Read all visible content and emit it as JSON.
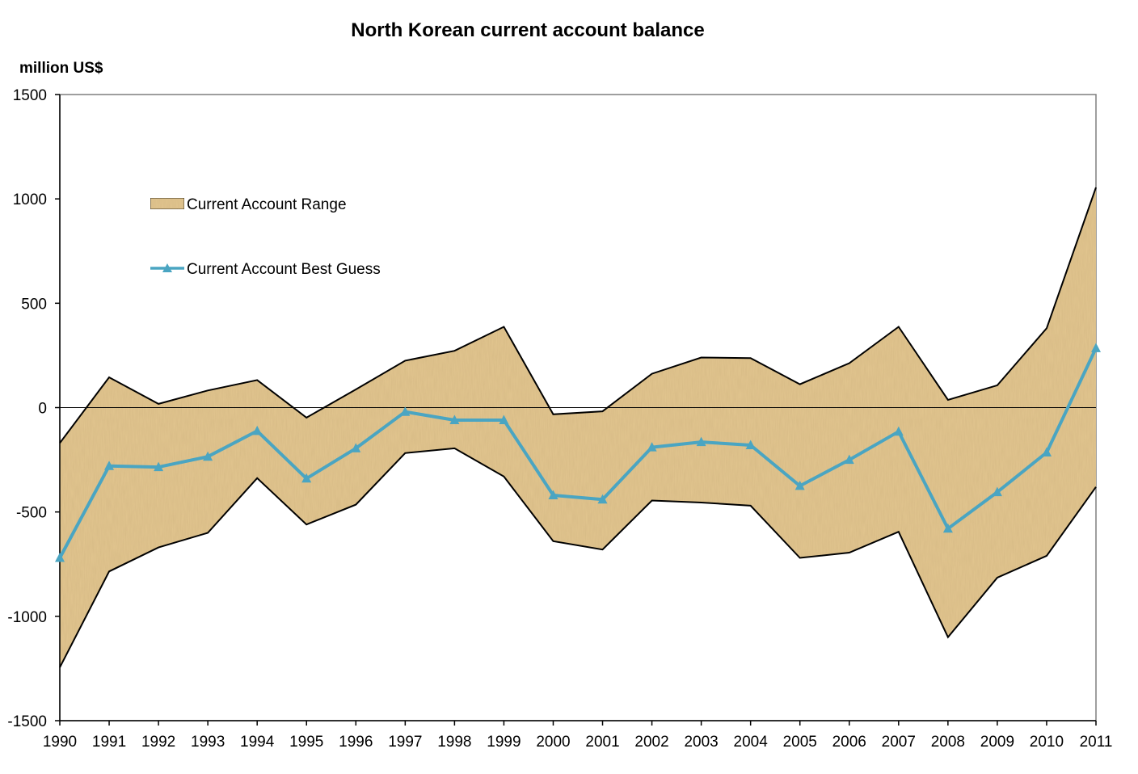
{
  "chart_data": {
    "type": "line",
    "title": "North Korean current account balance",
    "ylabel": "million US$",
    "xlabel": "",
    "ylim": [
      -1500,
      1500
    ],
    "yticks": [
      1500,
      1000,
      500,
      0,
      -500,
      -1000,
      -1500
    ],
    "x": [
      "1990",
      "1991",
      "1992",
      "1993",
      "1994",
      "1995",
      "1996",
      "1997",
      "1998",
      "1999",
      "2000",
      "2001",
      "2002",
      "2003",
      "2004",
      "2005",
      "2006",
      "2007",
      "2008",
      "2009",
      "2010",
      "2011"
    ],
    "range": {
      "name": "Current Account Range",
      "upper": [
        -170,
        145,
        18,
        82,
        132,
        -48,
        87,
        225,
        272,
        387,
        -32,
        -18,
        162,
        240,
        237,
        112,
        213,
        387,
        37,
        107,
        380,
        1055
      ],
      "lower": [
        -1245,
        -785,
        -670,
        -600,
        -338,
        -560,
        -465,
        -218,
        -195,
        -330,
        -640,
        -680,
        -445,
        -455,
        -470,
        -720,
        -695,
        -595,
        -1100,
        -815,
        -710,
        -380
      ]
    },
    "series": [
      {
        "name": "Current Account Best Guess",
        "values": [
          -720,
          -280,
          -285,
          -235,
          -112,
          -340,
          -195,
          -20,
          -60,
          -60,
          -420,
          -440,
          -190,
          -165,
          -180,
          -375,
          -250,
          -115,
          -580,
          -405,
          -215,
          285
        ]
      }
    ],
    "grid": false,
    "legend_position": "top-left",
    "colors": {
      "range_fill": "#e3c690",
      "range_edge": "#000000",
      "line": "#4aa5c2",
      "axis": "#000000",
      "frame": "#7f7f7f"
    }
  }
}
